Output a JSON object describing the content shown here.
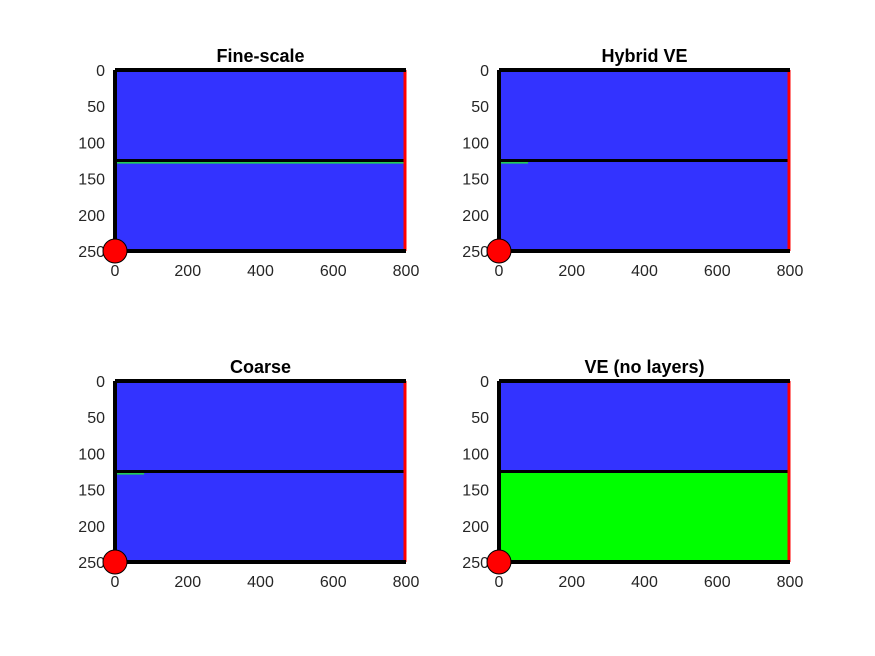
{
  "figure": {
    "colors": {
      "water": "#3333ff",
      "co2": "#00ff00",
      "layer_line": "#000000",
      "boundary": "#ff0000",
      "well": "#ff0000",
      "thin_co2": "#22cc55"
    }
  },
  "chart_data": [
    {
      "type": "heatmap",
      "title": "Fine-scale",
      "xlim": [
        0,
        800
      ],
      "ylim": [
        0,
        250
      ],
      "y_reversed": true,
      "xticks": [
        "0",
        "200",
        "400",
        "600",
        "800"
      ],
      "yticks": [
        "0",
        "50",
        "100",
        "150",
        "200",
        "250"
      ],
      "layer_boundary_y": 125,
      "co2_region": null,
      "co2_thin_layer": {
        "x": [
          0,
          800
        ],
        "y": 128
      },
      "well": {
        "x": 0,
        "y": 250
      },
      "open_boundary_x": 800
    },
    {
      "type": "heatmap",
      "title": "Hybrid VE",
      "xlim": [
        0,
        800
      ],
      "ylim": [
        0,
        250
      ],
      "y_reversed": true,
      "xticks": [
        "0",
        "200",
        "400",
        "600",
        "800"
      ],
      "yticks": [
        "0",
        "50",
        "100",
        "150",
        "200",
        "250"
      ],
      "layer_boundary_y": 125,
      "co2_region": null,
      "co2_thin_layer": {
        "x": [
          0,
          80
        ],
        "y": 128
      },
      "well": {
        "x": 0,
        "y": 250
      },
      "open_boundary_x": 800
    },
    {
      "type": "heatmap",
      "title": "Coarse",
      "xlim": [
        0,
        800
      ],
      "ylim": [
        0,
        250
      ],
      "y_reversed": true,
      "xticks": [
        "0",
        "200",
        "400",
        "600",
        "800"
      ],
      "yticks": [
        "0",
        "50",
        "100",
        "150",
        "200",
        "250"
      ],
      "layer_boundary_y": 125,
      "co2_region": null,
      "co2_thin_layer": {
        "x": [
          0,
          80
        ],
        "y": 128
      },
      "well": {
        "x": 0,
        "y": 250
      },
      "open_boundary_x": 800
    },
    {
      "type": "heatmap",
      "title": "VE (no layers)",
      "xlim": [
        0,
        800
      ],
      "ylim": [
        0,
        250
      ],
      "y_reversed": true,
      "xticks": [
        "0",
        "200",
        "400",
        "600",
        "800"
      ],
      "yticks": [
        "0",
        "50",
        "100",
        "150",
        "200",
        "250"
      ],
      "layer_boundary_y": 125,
      "co2_region": {
        "x": [
          0,
          800
        ],
        "y": [
          125,
          250
        ]
      },
      "co2_thin_layer": null,
      "well": {
        "x": 0,
        "y": 250
      },
      "open_boundary_x": 800
    }
  ]
}
